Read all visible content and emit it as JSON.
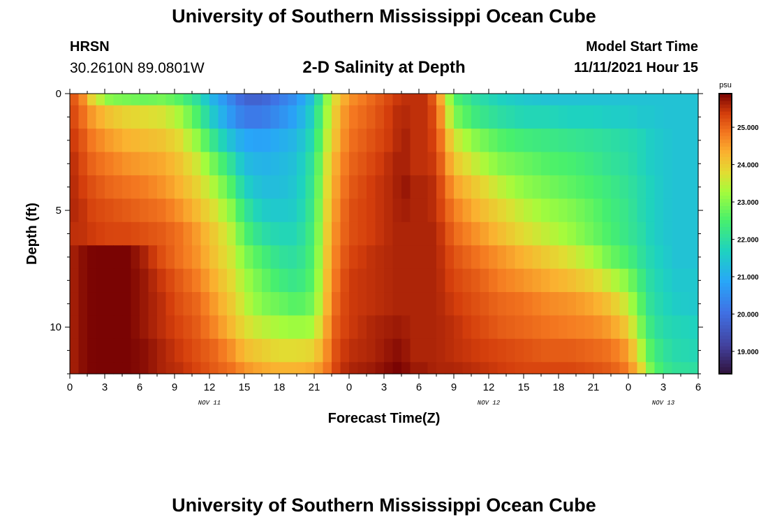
{
  "header": {
    "title": "University of Southern Mississippi Ocean Cube",
    "station": "HRSN",
    "coords": "30.2610N  89.0801W",
    "chart_title": "2-D Salinity at Depth",
    "start_label": "Model Start Time",
    "start_value": "11/11/2021 Hour 15"
  },
  "footer": {
    "title": "University of Southern Mississippi Ocean Cube"
  },
  "chart_data": {
    "type": "heatmap",
    "title": "2-D Salinity at Depth",
    "xlabel": "Forecast Time(Z)",
    "ylabel": "Depth (ft)",
    "x_range_hours": [
      0,
      54
    ],
    "x_ticks": [
      {
        "hour": 0,
        "label": "0"
      },
      {
        "hour": 3,
        "label": "3"
      },
      {
        "hour": 6,
        "label": "6"
      },
      {
        "hour": 9,
        "label": "9"
      },
      {
        "hour": 12,
        "label": "12"
      },
      {
        "hour": 15,
        "label": "15"
      },
      {
        "hour": 18,
        "label": "18"
      },
      {
        "hour": 21,
        "label": "21"
      },
      {
        "hour": 24,
        "label": "0"
      },
      {
        "hour": 27,
        "label": "3"
      },
      {
        "hour": 30,
        "label": "6"
      },
      {
        "hour": 33,
        "label": "9"
      },
      {
        "hour": 36,
        "label": "12"
      },
      {
        "hour": 39,
        "label": "15"
      },
      {
        "hour": 42,
        "label": "18"
      },
      {
        "hour": 45,
        "label": "21"
      },
      {
        "hour": 48,
        "label": "0"
      },
      {
        "hour": 51,
        "label": "3"
      },
      {
        "hour": 54,
        "label": "6"
      }
    ],
    "day_labels": [
      {
        "hour": 12,
        "label": "NOV 11"
      },
      {
        "hour": 36,
        "label": "NOV 12"
      },
      {
        "hour": 51,
        "label": "NOV 13"
      }
    ],
    "y_range_ft": [
      0,
      12
    ],
    "y_ticks": [
      {
        "depth": 0,
        "label": "0"
      },
      {
        "depth": 5,
        "label": "5"
      },
      {
        "depth": 10,
        "label": "10"
      }
    ],
    "colorbar": {
      "unit": "psu",
      "range": [
        18.4,
        25.9
      ],
      "ticks": [
        "19.000",
        "20.000",
        "21.000",
        "22.000",
        "23.000",
        "24.000",
        "25.000"
      ],
      "tick_values": [
        19,
        20,
        21,
        22,
        23,
        24,
        25
      ]
    },
    "anchor_hours": [
      0,
      1,
      2,
      3.5,
      5,
      6.5,
      8,
      9.5,
      11,
      12.5,
      14,
      15,
      16.5,
      18,
      19.5,
      21,
      22,
      23,
      24,
      26,
      28,
      28.5,
      29.5,
      30.5,
      31.5,
      33,
      35,
      37,
      39,
      41,
      43,
      45,
      46.5,
      48,
      49,
      50,
      51,
      52,
      54
    ],
    "depth_ft": [
      0,
      1,
      2,
      3,
      4,
      5,
      6,
      7,
      8,
      9,
      10,
      11,
      12
    ],
    "salinity_psu": [
      [
        25.3,
        24.8,
        23.8,
        23.0,
        22.9,
        22.8,
        22.9,
        22.6,
        22.0,
        21.0,
        20.3,
        19.8,
        19.8,
        20.2,
        20.6,
        21.5,
        23.0,
        24.0,
        24.6,
        25.0,
        25.4,
        25.5,
        25.5,
        25.5,
        25.0,
        22.6,
        22.0,
        21.7,
        21.5,
        21.4,
        21.4,
        21.4,
        21.4,
        21.4,
        21.4,
        21.4,
        21.4,
        21.4,
        21.4
      ],
      [
        25.4,
        25.0,
        24.5,
        24.1,
        23.9,
        23.8,
        23.7,
        23.3,
        22.5,
        21.4,
        20.6,
        20.2,
        20.2,
        20.5,
        20.9,
        21.8,
        23.2,
        24.2,
        24.8,
        25.1,
        25.5,
        25.6,
        25.5,
        25.5,
        25.2,
        23.0,
        22.3,
        22.0,
        21.8,
        21.8,
        21.7,
        21.7,
        21.6,
        21.6,
        21.5,
        21.5,
        21.4,
        21.4,
        21.4
      ],
      [
        25.5,
        25.2,
        24.8,
        24.5,
        24.3,
        24.2,
        24.1,
        23.8,
        23.1,
        22.1,
        21.3,
        20.9,
        20.8,
        21.0,
        21.2,
        22.0,
        23.4,
        24.3,
        24.9,
        25.2,
        25.5,
        25.7,
        25.5,
        25.5,
        25.3,
        23.7,
        23.0,
        22.6,
        22.4,
        22.3,
        22.2,
        22.1,
        22.0,
        21.9,
        21.8,
        21.6,
        21.5,
        21.4,
        21.4
      ],
      [
        25.6,
        25.3,
        25.0,
        24.8,
        24.6,
        24.5,
        24.4,
        24.1,
        23.6,
        22.8,
        22.0,
        21.3,
        21.1,
        21.2,
        21.4,
        22.2,
        23.6,
        24.5,
        25.0,
        25.3,
        25.6,
        25.7,
        25.5,
        25.5,
        25.4,
        24.1,
        23.5,
        23.0,
        22.8,
        22.6,
        22.5,
        22.3,
        22.1,
        22.0,
        21.8,
        21.6,
        21.5,
        21.4,
        21.4
      ],
      [
        25.6,
        25.4,
        25.2,
        25.0,
        24.9,
        24.8,
        24.6,
        24.3,
        23.9,
        23.3,
        22.5,
        21.7,
        21.3,
        21.3,
        21.5,
        22.3,
        23.7,
        24.6,
        25.1,
        25.4,
        25.6,
        25.8,
        25.6,
        25.6,
        25.5,
        24.5,
        24.0,
        23.5,
        23.1,
        22.9,
        22.7,
        22.5,
        22.3,
        22.1,
        21.9,
        21.7,
        21.5,
        21.4,
        21.4
      ],
      [
        25.6,
        25.5,
        25.3,
        25.2,
        25.1,
        25.0,
        24.9,
        24.6,
        24.2,
        23.7,
        23.0,
        22.2,
        21.6,
        21.5,
        21.6,
        22.4,
        23.8,
        24.7,
        25.2,
        25.4,
        25.6,
        25.7,
        25.6,
        25.6,
        25.5,
        24.8,
        24.3,
        23.9,
        23.5,
        23.2,
        23.0,
        22.7,
        22.4,
        22.2,
        21.9,
        21.7,
        21.5,
        21.4,
        21.4
      ],
      [
        25.5,
        25.5,
        25.4,
        25.3,
        25.3,
        25.2,
        25.1,
        24.9,
        24.5,
        24.0,
        23.4,
        22.6,
        22.0,
        21.8,
        21.8,
        22.5,
        23.9,
        24.8,
        25.2,
        25.4,
        25.6,
        25.6,
        25.6,
        25.6,
        25.6,
        25.0,
        24.6,
        24.2,
        23.8,
        23.5,
        23.2,
        22.8,
        22.5,
        22.2,
        22.0,
        21.7,
        21.5,
        21.4,
        21.4
      ],
      [
        25.6,
        25.8,
        25.9,
        25.9,
        25.9,
        25.6,
        25.2,
        24.9,
        24.6,
        24.1,
        23.6,
        23.0,
        22.5,
        22.1,
        22.0,
        22.6,
        24.0,
        24.9,
        25.3,
        25.5,
        25.6,
        25.6,
        25.6,
        25.6,
        25.6,
        25.2,
        24.9,
        24.6,
        24.3,
        24.0,
        23.7,
        23.3,
        22.8,
        22.5,
        22.1,
        21.8,
        21.6,
        21.4,
        21.4
      ],
      [
        25.6,
        25.8,
        25.9,
        25.9,
        25.9,
        25.7,
        25.4,
        25.1,
        24.8,
        24.3,
        23.8,
        23.3,
        22.8,
        22.4,
        22.2,
        22.7,
        24.1,
        25.0,
        25.4,
        25.5,
        25.6,
        25.6,
        25.6,
        25.6,
        25.6,
        25.3,
        25.1,
        24.8,
        24.6,
        24.4,
        24.2,
        23.9,
        23.5,
        23.0,
        22.4,
        21.9,
        21.7,
        21.5,
        21.5
      ],
      [
        25.6,
        25.8,
        25.9,
        25.9,
        25.9,
        25.7,
        25.5,
        25.2,
        25.0,
        24.5,
        24.0,
        23.5,
        23.0,
        22.8,
        22.6,
        22.9,
        24.2,
        25.1,
        25.4,
        25.5,
        25.6,
        25.6,
        25.6,
        25.6,
        25.6,
        25.4,
        25.2,
        25.0,
        24.9,
        24.7,
        24.6,
        24.4,
        24.1,
        23.5,
        22.7,
        22.0,
        21.8,
        21.6,
        21.5
      ],
      [
        25.6,
        25.8,
        25.9,
        25.9,
        25.9,
        25.7,
        25.5,
        25.3,
        25.1,
        24.7,
        24.2,
        23.8,
        23.5,
        23.3,
        23.2,
        23.3,
        24.4,
        25.2,
        25.4,
        25.6,
        25.7,
        25.7,
        25.6,
        25.6,
        25.6,
        25.5,
        25.3,
        25.1,
        25.0,
        24.9,
        24.8,
        24.7,
        24.5,
        24.0,
        23.0,
        22.2,
        21.9,
        21.8,
        21.7
      ],
      [
        25.6,
        25.8,
        25.9,
        25.9,
        25.9,
        25.8,
        25.6,
        25.4,
        25.2,
        25.0,
        24.6,
        24.2,
        24.0,
        23.8,
        23.8,
        23.9,
        24.6,
        25.3,
        25.5,
        25.6,
        25.8,
        25.8,
        25.6,
        25.6,
        25.6,
        25.5,
        25.4,
        25.3,
        25.2,
        25.1,
        25.1,
        25.0,
        24.9,
        24.5,
        23.5,
        22.5,
        22.1,
        21.9,
        21.8
      ],
      [
        25.6,
        25.8,
        25.9,
        25.9,
        25.9,
        25.8,
        25.6,
        25.5,
        25.3,
        25.1,
        24.9,
        24.6,
        24.4,
        24.3,
        24.3,
        24.4,
        24.8,
        25.4,
        25.6,
        25.7,
        25.9,
        25.9,
        25.7,
        25.7,
        25.6,
        25.6,
        25.5,
        25.4,
        25.3,
        25.3,
        25.3,
        25.2,
        25.1,
        24.8,
        24.0,
        22.8,
        22.3,
        22.1,
        22.0
      ]
    ]
  }
}
